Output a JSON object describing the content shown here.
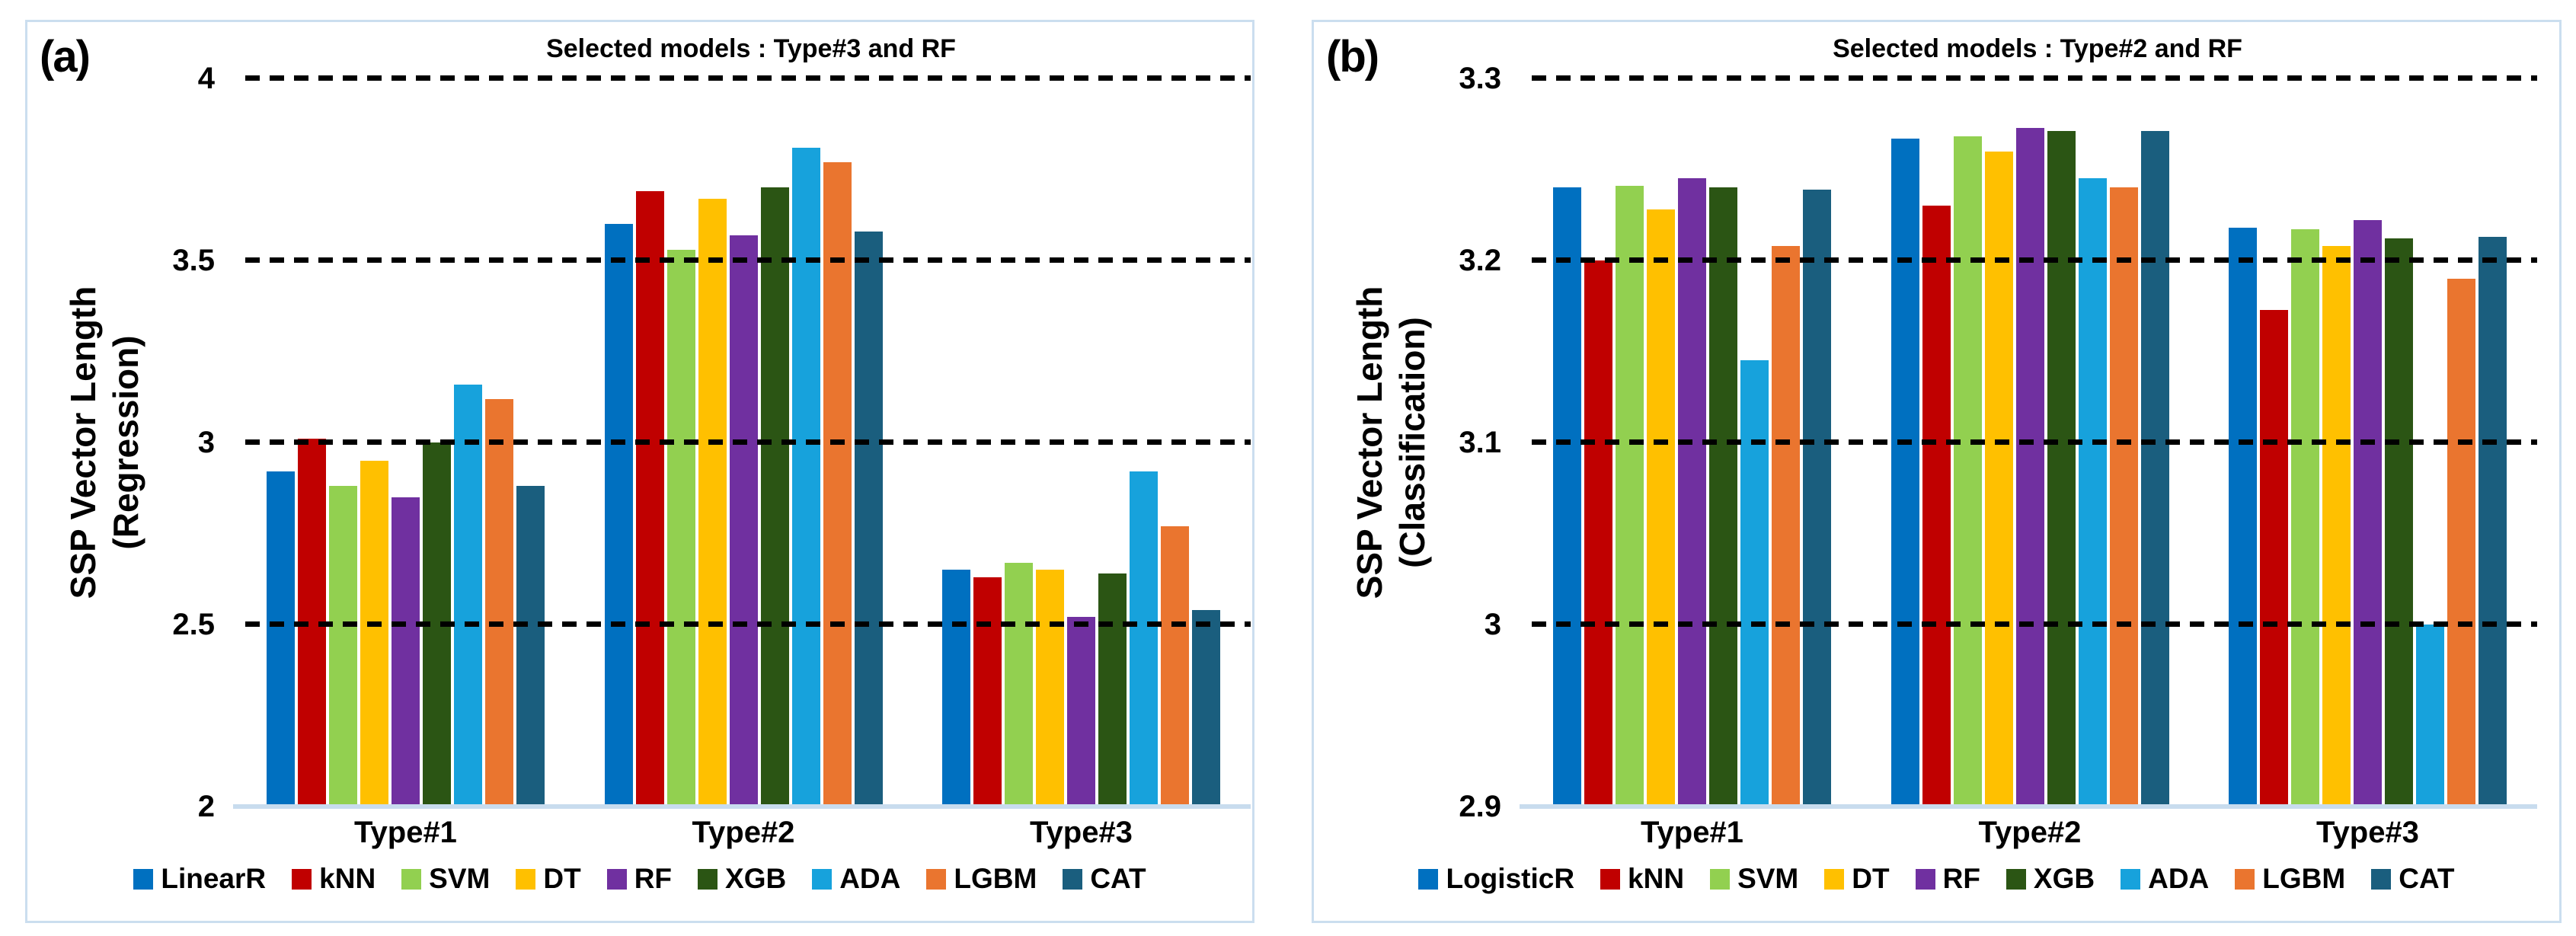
{
  "colors": {
    "panel_border": "#CBDEEF",
    "axis_line": "#C8DCEE",
    "gridline": "#000000",
    "background": "#FFFFFF"
  },
  "panels": [
    {
      "label": "(a)",
      "title": "Selected models : Type#3 and RF",
      "y_axis_title_line1": "SSP Vector Length",
      "y_axis_title_line2": "(Regression)",
      "chart_index": 0
    },
    {
      "label": "(b)",
      "title": "Selected models : Type#2 and RF",
      "y_axis_title_line1": "SSP Vector Length",
      "y_axis_title_line2": "(Classification)",
      "chart_index": 1
    }
  ],
  "chart_data": [
    {
      "type": "bar",
      "title": "Selected models : Type#3 and RF",
      "ylabel": "SSP Vector Length (Regression)",
      "categories": [
        "Type#1",
        "Type#2",
        "Type#3"
      ],
      "ylim": [
        2,
        4
      ],
      "yticks": [
        4,
        3.5,
        3,
        2.5,
        2
      ],
      "ytick_labels": [
        "4",
        "3.5",
        "3",
        "2.5",
        "2"
      ],
      "grid": "horizontal-dashed",
      "legend_position": "bottom",
      "series": [
        {
          "name": "LinearR",
          "color": "#0070C0",
          "values": [
            2.92,
            3.6,
            2.65
          ]
        },
        {
          "name": "kNN",
          "color": "#C00000",
          "values": [
            3.01,
            3.69,
            2.63
          ]
        },
        {
          "name": "SVM",
          "color": "#92D050",
          "values": [
            2.88,
            3.53,
            2.67
          ]
        },
        {
          "name": "DT",
          "color": "#FFC000",
          "values": [
            2.95,
            3.67,
            2.65
          ]
        },
        {
          "name": "RF",
          "color": "#7030A0",
          "values": [
            2.85,
            3.57,
            2.52
          ]
        },
        {
          "name": "XGB",
          "color": "#2B5514",
          "values": [
            3.0,
            3.7,
            2.64
          ]
        },
        {
          "name": "ADA",
          "color": "#17A2DC",
          "values": [
            3.16,
            3.81,
            2.92
          ]
        },
        {
          "name": "LGBM",
          "color": "#EA752F",
          "values": [
            3.12,
            3.77,
            2.77
          ]
        },
        {
          "name": "CAT",
          "color": "#1A5E7E",
          "values": [
            2.88,
            3.58,
            2.54
          ]
        }
      ]
    },
    {
      "type": "bar",
      "title": "Selected models : Type#2 and RF",
      "ylabel": "SSP Vector Length (Classification)",
      "categories": [
        "Type#1",
        "Type#2",
        "Type#3"
      ],
      "ylim": [
        2.9,
        3.3
      ],
      "yticks": [
        3.3,
        3.2,
        3.1,
        3.0,
        2.9
      ],
      "ytick_labels": [
        "3.3",
        "3.2",
        "3.1",
        "3",
        "2.9"
      ],
      "grid": "horizontal-dashed",
      "legend_position": "bottom",
      "series": [
        {
          "name": "LogisticR",
          "color": "#0070C0",
          "values": [
            3.24,
            3.267,
            3.218
          ]
        },
        {
          "name": "kNN",
          "color": "#C00000",
          "values": [
            3.2,
            3.23,
            3.173
          ]
        },
        {
          "name": "SVM",
          "color": "#92D050",
          "values": [
            3.241,
            3.268,
            3.217
          ]
        },
        {
          "name": "DT",
          "color": "#FFC000",
          "values": [
            3.228,
            3.26,
            3.208
          ]
        },
        {
          "name": "RF",
          "color": "#7030A0",
          "values": [
            3.245,
            3.273,
            3.222
          ]
        },
        {
          "name": "XGB",
          "color": "#2B5514",
          "values": [
            3.24,
            3.271,
            3.212
          ]
        },
        {
          "name": "ADA",
          "color": "#17A2DC",
          "values": [
            3.145,
            3.245,
            3.0
          ]
        },
        {
          "name": "LGBM",
          "color": "#EA752F",
          "values": [
            3.208,
            3.24,
            3.19
          ]
        },
        {
          "name": "CAT",
          "color": "#1A5E7E",
          "values": [
            3.239,
            3.271,
            3.213
          ]
        }
      ]
    }
  ]
}
